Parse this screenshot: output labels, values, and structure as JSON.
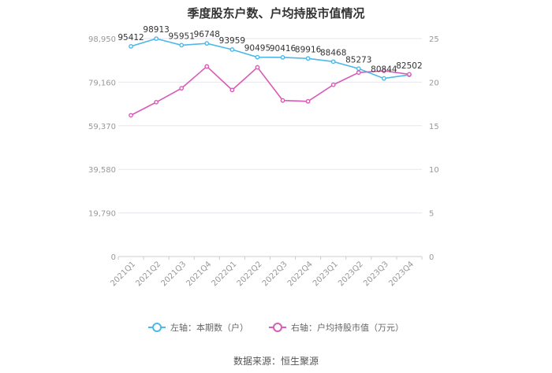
{
  "title": "季度股东户数、户均持股市值情况",
  "source": "数据来源：恒生聚源",
  "legend": {
    "left_label": "左轴：本期数（户）",
    "right_label": "右轴：户均持股市值（万元）"
  },
  "colors": {
    "left_series": "#4DB8EA",
    "right_series": "#D85CB5",
    "grid": "#E6E6EE",
    "axis_text": "#999999"
  },
  "chart_data": {
    "type": "line",
    "title": "季度股东户数、户均持股市值情况",
    "categories": [
      "2021Q1",
      "2021Q2",
      "2021Q3",
      "2021Q4",
      "2022Q1",
      "2022Q2",
      "2022Q3",
      "2022Q4",
      "2023Q1",
      "2023Q2",
      "2023Q3",
      "2023Q4"
    ],
    "left_axis": {
      "ylim": [
        0,
        98950
      ],
      "ticks": [
        0,
        19790,
        39580,
        59370,
        79160,
        98950
      ],
      "tick_labels": [
        "0",
        "19,790",
        "39,580",
        "59,370",
        "79,160",
        "98,950"
      ]
    },
    "right_axis": {
      "ylim": [
        0,
        25
      ],
      "ticks": [
        0,
        5,
        10,
        15,
        20,
        25
      ],
      "tick_labels": [
        "0",
        "5",
        "10",
        "15",
        "20",
        "25"
      ]
    },
    "series": [
      {
        "name": "左轴：本期数（户）",
        "axis": "left",
        "values": [
          95412,
          98913,
          95951,
          96748,
          93959,
          90495,
          90416,
          89916,
          88468,
          85273,
          80844,
          82502
        ],
        "labels": [
          "95412",
          "98913",
          "95951",
          "96748",
          "93959",
          "90495",
          "90416",
          "89916",
          "88468",
          "85273",
          "80844",
          "82502"
        ]
      },
      {
        "name": "右轴：户均持股市值（万元）",
        "axis": "right",
        "values": [
          16.2,
          17.7,
          19.3,
          21.8,
          19.1,
          21.7,
          17.9,
          17.8,
          19.7,
          21.1,
          21.3,
          20.9
        ]
      }
    ],
    "grid": true,
    "legend_position": "bottom"
  }
}
